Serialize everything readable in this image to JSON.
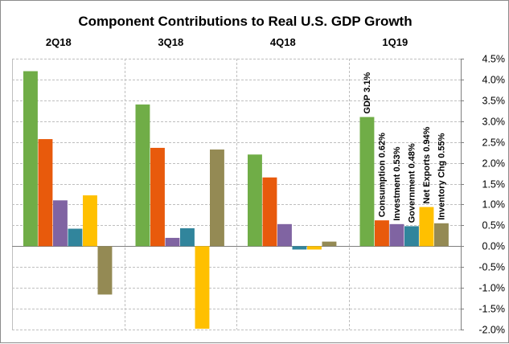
{
  "chart_data": {
    "type": "bar",
    "title": "Component Contributions to Real U.S. GDP Growth",
    "categories": [
      "2Q18",
      "3Q18",
      "4Q18",
      "1Q19"
    ],
    "series": [
      {
        "values": [
          4.2,
          3.4,
          2.2,
          3.1
        ],
        "color": "#70ad47"
      },
      {
        "values": [
          2.57,
          2.36,
          1.65,
          0.62
        ],
        "color": "#e85a0c"
      },
      {
        "values": [
          1.1,
          0.2,
          0.53,
          0.53
        ],
        "color": "#8064a2"
      },
      {
        "values": [
          0.42,
          0.43,
          -0.08,
          0.48
        ],
        "color": "#31859c"
      },
      {
        "values": [
          1.22,
          -1.98,
          -0.08,
          0.94
        ],
        "color": "#ffc000"
      },
      {
        "values": [
          -1.16,
          2.32,
          0.11,
          0.55
        ],
        "color": "#948a54"
      }
    ],
    "ylim": [
      -2.0,
      4.5
    ],
    "yticks": [
      4.5,
      4.0,
      3.5,
      3.0,
      2.5,
      2.0,
      1.5,
      1.0,
      0.5,
      0.0,
      -0.5,
      -1.0,
      -1.5,
      -2.0
    ],
    "ytick_labels": [
      "4.5%",
      "4.0%",
      "3.5%",
      "3.0%",
      "2.5%",
      "2.0%",
      "1.5%",
      "1.0%",
      "0.5%",
      "0.0%",
      "-0.5%",
      "-1.0%",
      "-1.5%",
      "-2.0%"
    ],
    "ytick_format": "percent",
    "grid": true,
    "gridline_style": "dashed",
    "legend": "none",
    "annotations": {
      "category_index": 3,
      "labels": [
        "GDP 3.1%",
        "Consumption 0.62%",
        "Investment 0.53%",
        "Government 0.48%",
        "Net Exports 0.94%",
        "Inventory Chg 0.55%"
      ]
    }
  }
}
